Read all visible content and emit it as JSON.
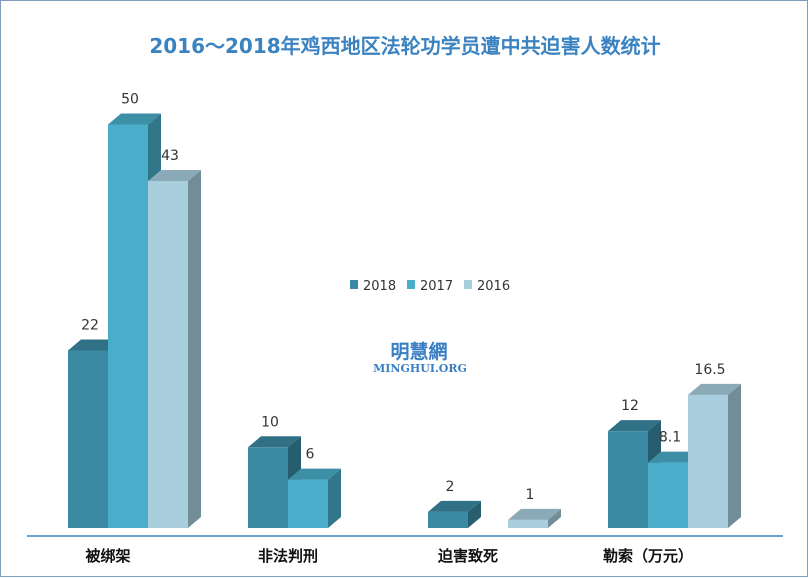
{
  "chart_data": {
    "type": "bar",
    "title": "2016～2018年鸡西地区法轮功学员遭中共迫害人数统计",
    "categories": [
      "被绑架",
      "非法判刑",
      "迫害致死",
      "勒索（万元）"
    ],
    "series": [
      {
        "name": "2018",
        "color": "#3a8aa3",
        "values": [
          22,
          10,
          2,
          12
        ],
        "labels": [
          "22",
          "10",
          "2",
          "12"
        ]
      },
      {
        "name": "2017",
        "color": "#4aaecb",
        "values": [
          50,
          6,
          null,
          8.1
        ],
        "labels": [
          "50",
          "6",
          "",
          "8.1"
        ]
      },
      {
        "name": "2016",
        "color": "#a9cfdf",
        "values": [
          43,
          null,
          1,
          16.5
        ],
        "labels": [
          "43",
          "",
          "1",
          "16.5"
        ]
      }
    ],
    "ylim": [
      0,
      50
    ],
    "grid": false,
    "legend": "center",
    "style": "3d-column"
  },
  "watermark": {
    "main": "明慧網",
    "sub": "MINGHUI.ORG"
  }
}
